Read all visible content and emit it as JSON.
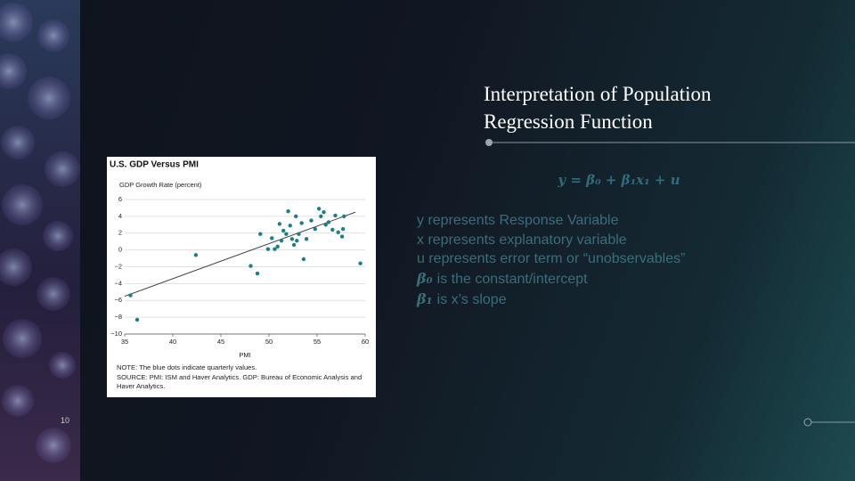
{
  "slide": {
    "title": "Interpretation of Population Regression Function",
    "equation": "y = β₀ + β₁x₁ + u",
    "lines": [
      {
        "text": "y represents Response Variable"
      },
      {
        "text": "x represents explanatory variable"
      },
      {
        "text": "u represents error term or “unobservables”"
      },
      {
        "symbol": "β₀",
        "text": "is the constant/intercept"
      },
      {
        "symbol": "β₁",
        "text": "is x’s slope"
      }
    ],
    "page_number": "10"
  },
  "chart_data": {
    "type": "scatter",
    "title": "U.S. GDP Versus PMI",
    "y_label": "GDP Growth Rate (percent)",
    "x_label": "PMI",
    "notes": [
      "NOTE: The blue dots indicate quarterly values.",
      "SOURCE: PMI: ISM and Haver Analytics. GDP: Bureau of Economic Analysis and Haver Analytics."
    ],
    "color": "#1c7f86",
    "grid": true,
    "xlim": [
      35,
      60
    ],
    "xticks": [
      35,
      40,
      45,
      50,
      55,
      60
    ],
    "ylim": [
      -10,
      6
    ],
    "yticks": [
      6,
      4,
      2,
      0,
      {
        "value": -2,
        "label": "−2"
      },
      {
        "value": -4,
        "label": "−4"
      },
      {
        "value": -6,
        "label": "−6"
      },
      {
        "value": -8,
        "label": "−8"
      },
      {
        "value": -10,
        "label": "−10"
      }
    ],
    "x": [
      35.6,
      36.3,
      42.4,
      48.1,
      48.8,
      49.1,
      49.9,
      50.3,
      50.6,
      50.9,
      51.1,
      51.3,
      51.5,
      51.8,
      52.0,
      52.2,
      52.4,
      52.6,
      52.8,
      52.9,
      53.1,
      53.4,
      53.6,
      53.9,
      54.4,
      54.8,
      55.2,
      55.4,
      55.7,
      55.9,
      56.2,
      56.6,
      56.9,
      57.2,
      57.6,
      57.8,
      57.7,
      59.5
    ],
    "values": [
      -5.4,
      -8.3,
      -0.6,
      -1.9,
      -2.8,
      1.9,
      0.1,
      1.4,
      0.1,
      0.4,
      3.1,
      1.1,
      2.3,
      1.9,
      4.6,
      2.9,
      1.3,
      0.6,
      4.0,
      1.1,
      1.9,
      3.2,
      -1.1,
      1.3,
      3.5,
      2.5,
      4.9,
      4.0,
      4.5,
      3.0,
      3.3,
      2.4,
      4.1,
      2.1,
      1.6,
      4.0,
      2.5,
      -1.6
    ],
    "trend_line": {
      "x": [
        35,
        59
      ],
      "y": [
        -5.5,
        4.5
      ]
    }
  }
}
